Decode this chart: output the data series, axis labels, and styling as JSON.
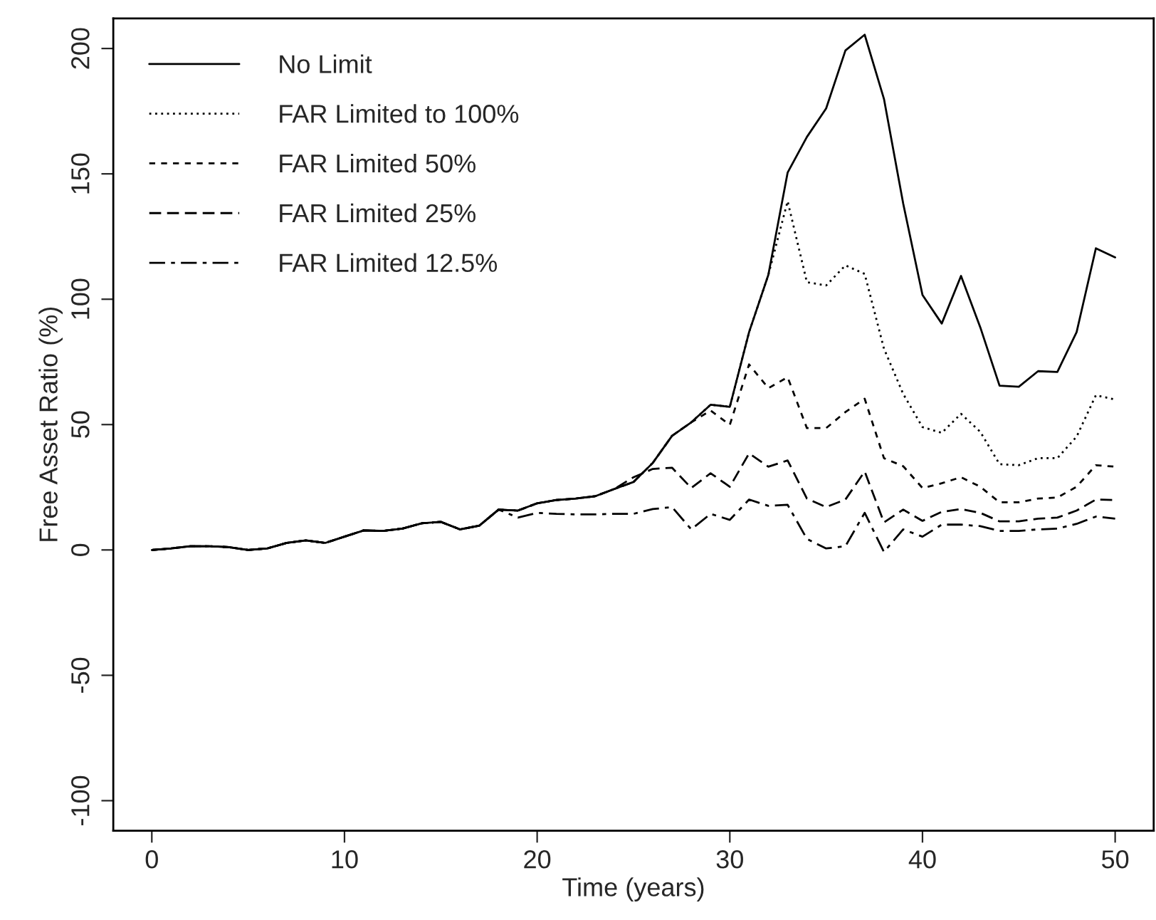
{
  "chart_data": {
    "type": "line",
    "xlabel": "Time (years)",
    "ylabel": "Free Asset Ratio (%)",
    "x": [
      0,
      1,
      2,
      3,
      4,
      5,
      6,
      7,
      8,
      9,
      10,
      11,
      12,
      13,
      14,
      15,
      16,
      17,
      18,
      19,
      20,
      21,
      22,
      23,
      24,
      25,
      26,
      27,
      28,
      29,
      30,
      31,
      32,
      33,
      34,
      35,
      36,
      37,
      38,
      39,
      40,
      41,
      42,
      43,
      44,
      45,
      46,
      47,
      48,
      49,
      50
    ],
    "series": [
      {
        "name": "No Limit",
        "color": "#000000",
        "line_style": "solid",
        "values": [
          0,
          0.6,
          1.5,
          1.5,
          1.1,
          0,
          0.6,
          2.8,
          3.8,
          2.8,
          5.3,
          7.8,
          7.6,
          8.5,
          10.6,
          11.2,
          8.2,
          9.7,
          16.1,
          15.7,
          18.6,
          19.9,
          20.5,
          21.4,
          24.3,
          27.1,
          34.7,
          45.5,
          50.9,
          57.9,
          57.1,
          86.9,
          109.7,
          150.5,
          164.7,
          176.1,
          199.2,
          205.5,
          179.9,
          138.1,
          101.7,
          90.3,
          109.3,
          88.8,
          65.5,
          65.1,
          71.3,
          71.0,
          86.9,
          120.3,
          116.7
        ]
      },
      {
        "name": "FAR Limited to 100%",
        "color": "#000000",
        "line_style": "dotted",
        "values": [
          0,
          0.6,
          1.5,
          1.5,
          1.1,
          0,
          0.6,
          2.8,
          3.8,
          2.8,
          5.3,
          7.8,
          7.6,
          8.5,
          10.6,
          11.2,
          8.2,
          9.7,
          16.1,
          15.7,
          18.6,
          19.9,
          20.5,
          21.4,
          24.3,
          27.1,
          34.7,
          45.5,
          50.9,
          57.9,
          57.1,
          86.9,
          109.7,
          139.1,
          106.8,
          105.5,
          113.5,
          110.1,
          80.3,
          62.2,
          49.0,
          46.7,
          54.3,
          47.1,
          34.2,
          33.8,
          36.6,
          36.6,
          45.2,
          61.7,
          60.0
        ]
      },
      {
        "name": "FAR Limited 50%",
        "color": "#000000",
        "line_style": "dashed",
        "values": [
          0,
          0.6,
          1.5,
          1.5,
          1.1,
          0,
          0.6,
          2.8,
          3.8,
          2.8,
          5.3,
          7.8,
          7.6,
          8.5,
          10.6,
          11.2,
          8.2,
          9.7,
          16.1,
          15.7,
          18.6,
          19.9,
          20.5,
          21.4,
          24.3,
          27.1,
          34.7,
          45.5,
          50.9,
          55.6,
          49.9,
          74.0,
          64.5,
          68.9,
          48.6,
          48.6,
          55.0,
          60.3,
          36.6,
          33.4,
          24.7,
          26.6,
          29.0,
          25.2,
          19.0,
          19.0,
          20.5,
          20.9,
          25.2,
          33.8,
          33.2
        ]
      },
      {
        "name": "FAR Limited 25%",
        "color": "#000000",
        "line_style": "longdash",
        "values": [
          0,
          0.6,
          1.5,
          1.5,
          1.1,
          0,
          0.6,
          2.8,
          3.8,
          2.8,
          5.3,
          7.8,
          7.6,
          8.5,
          10.6,
          11.2,
          8.2,
          9.7,
          16.1,
          15.7,
          18.6,
          19.9,
          20.5,
          21.4,
          24.3,
          29.0,
          32.3,
          32.8,
          24.7,
          30.6,
          25.2,
          38.5,
          33.2,
          35.7,
          20.5,
          17.1,
          20.1,
          31.3,
          11.0,
          16.1,
          11.6,
          15.2,
          16.3,
          14.8,
          11.4,
          11.4,
          12.5,
          12.9,
          15.7,
          20.1,
          19.9
        ]
      },
      {
        "name": "FAR Limited 12.5%",
        "color": "#000000",
        "line_style": "twodash",
        "values": [
          0,
          0.6,
          1.5,
          1.5,
          1.1,
          0,
          0.6,
          2.8,
          3.8,
          2.8,
          5.3,
          7.8,
          7.6,
          8.5,
          10.6,
          11.2,
          8.2,
          9.7,
          16.1,
          12.9,
          14.8,
          14.4,
          14.2,
          14.2,
          14.4,
          14.4,
          16.3,
          17.1,
          8.2,
          14.4,
          12.0,
          20.1,
          17.6,
          18.0,
          4.4,
          0.6,
          1.5,
          14.8,
          -0.8,
          8.2,
          5.3,
          10.1,
          10.1,
          9.5,
          7.6,
          7.6,
          8.2,
          8.5,
          10.4,
          13.3,
          12.5
        ]
      }
    ],
    "xlim": [
      -2,
      52
    ],
    "ylim": [
      -112,
      212
    ],
    "xticks": [
      0,
      10,
      20,
      30,
      40,
      50
    ],
    "yticks": [
      -100,
      -50,
      0,
      50,
      100,
      150,
      200
    ],
    "legend": "top left",
    "grid": false
  }
}
